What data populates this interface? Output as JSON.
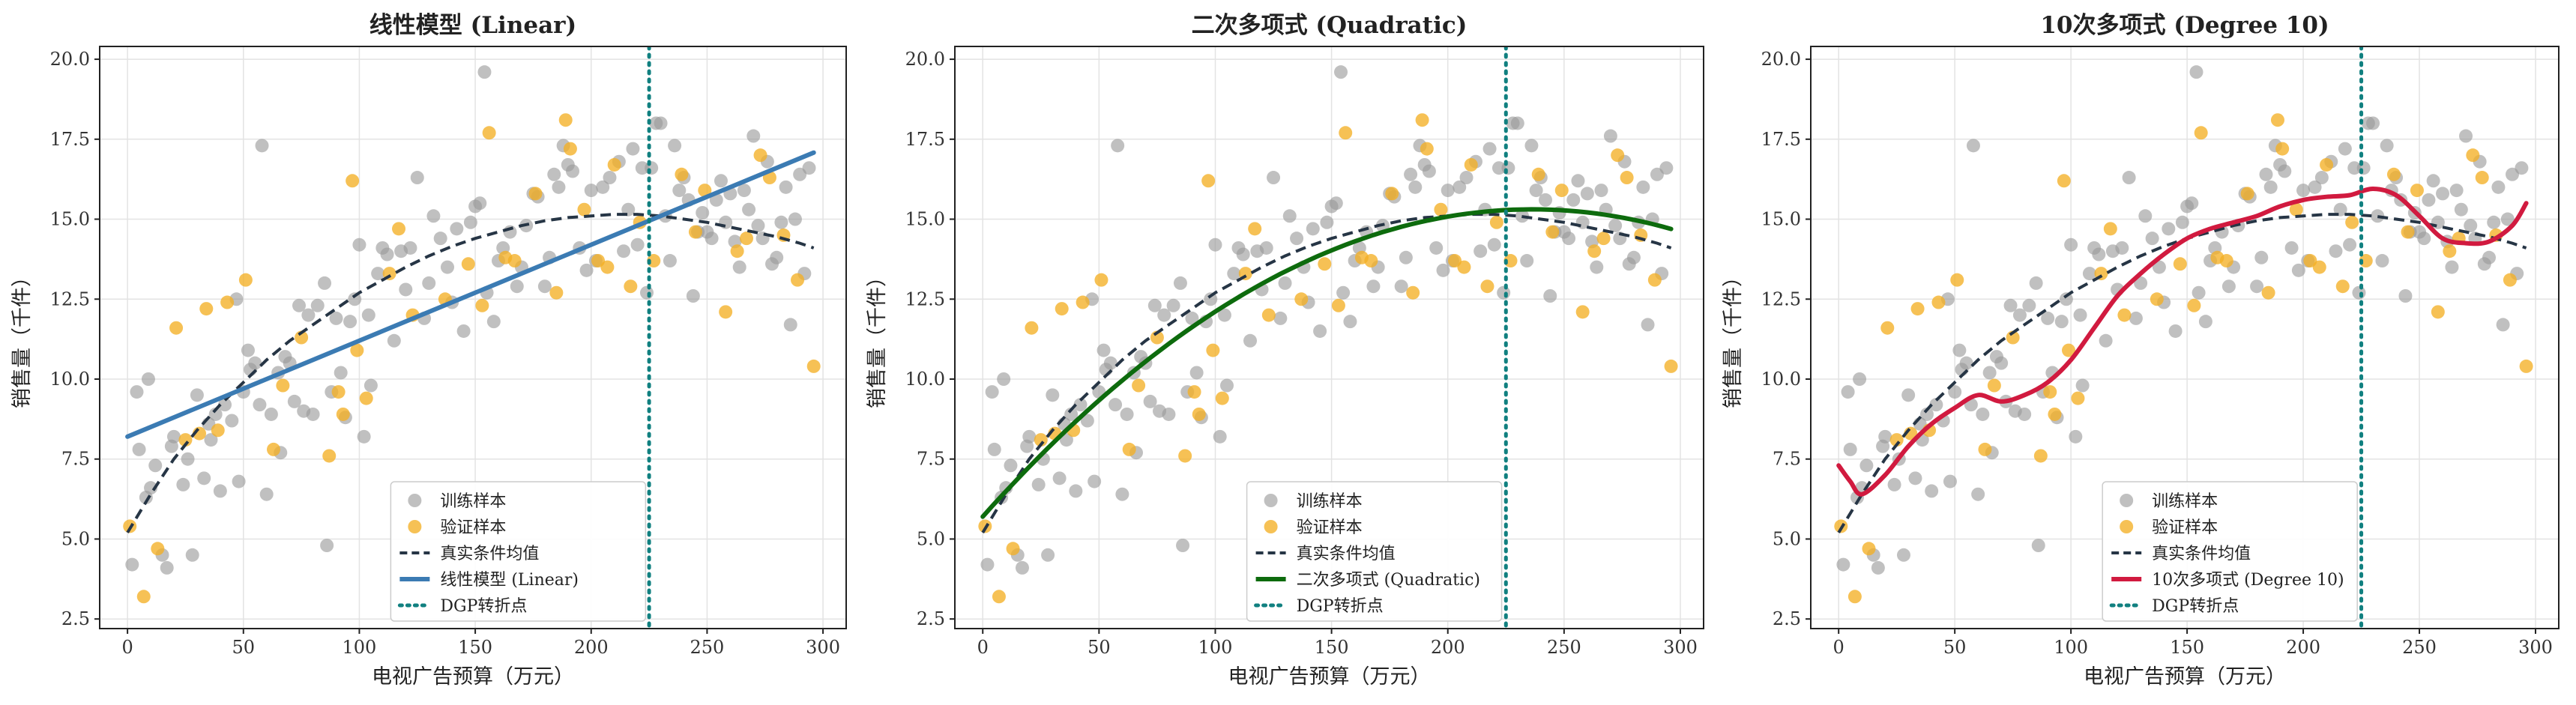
{
  "chart_data": [
    {
      "type": "scatter",
      "title": "线性模型 (Linear)",
      "xlabel": "电视广告预算（万元）",
      "ylabel": "销售量（千件）",
      "xlim": [
        -12,
        310
      ],
      "ylim": [
        2.2,
        20.4
      ],
      "xticks": [
        0,
        50,
        100,
        150,
        200,
        250,
        300
      ],
      "yticks": [
        2.5,
        5.0,
        7.5,
        10.0,
        12.5,
        15.0,
        17.5,
        20.0
      ],
      "grid": true,
      "legend_position": "lower-center",
      "model": {
        "name": "线性模型 (Linear)",
        "kind": "linear",
        "color": "#3b7bb3",
        "coef": [
          8.2,
          0.03
        ]
      },
      "legend": [
        "训练样本",
        "验证样本",
        "真实条件均值",
        "线性模型 (Linear)",
        "DGP转折点"
      ]
    },
    {
      "type": "scatter",
      "title": "二次多项式 (Quadratic)",
      "xlabel": "电视广告预算（万元）",
      "ylabel": "销售量（千件）",
      "xlim": [
        -12,
        310
      ],
      "ylim": [
        2.2,
        20.4
      ],
      "xticks": [
        0,
        50,
        100,
        150,
        200,
        250,
        300
      ],
      "yticks": [
        2.5,
        5.0,
        7.5,
        10.0,
        12.5,
        15.0,
        17.5,
        20.0
      ],
      "grid": true,
      "legend_position": "lower-center",
      "model": {
        "name": "二次多项式 (Quadratic)",
        "kind": "quadratic",
        "color": "#0d6b0d",
        "coef": [
          5.7,
          0.0813,
          -0.000172
        ]
      },
      "legend": [
        "训练样本",
        "验证样本",
        "真实条件均值",
        "二次多项式 (Quadratic)",
        "DGP转折点"
      ]
    },
    {
      "type": "scatter",
      "title": "10次多项式 (Degree 10)",
      "xlabel": "电视广告预算（万元）",
      "ylabel": "销售量（千件）",
      "xlim": [
        -12,
        310
      ],
      "ylim": [
        2.2,
        20.4
      ],
      "xticks": [
        0,
        50,
        100,
        150,
        200,
        250,
        300
      ],
      "yticks": [
        2.5,
        5.0,
        7.5,
        10.0,
        12.5,
        15.0,
        17.5,
        20.0
      ],
      "grid": true,
      "legend_position": "lower-center",
      "model": {
        "name": "10次多项式 (Degree 10)",
        "kind": "points",
        "color": "#d11a3f",
        "x": [
          0,
          5,
          10,
          20,
          30,
          40,
          50,
          60,
          70,
          80,
          90,
          100,
          110,
          120,
          130,
          140,
          150,
          160,
          170,
          180,
          190,
          200,
          210,
          220,
          230,
          240,
          250,
          260,
          270,
          280,
          290,
          296
        ],
        "y": [
          7.3,
          6.8,
          6.4,
          7.0,
          7.9,
          8.6,
          9.1,
          9.5,
          9.3,
          9.5,
          9.9,
          10.6,
          11.6,
          12.6,
          13.3,
          13.9,
          14.4,
          14.7,
          14.9,
          15.1,
          15.4,
          15.6,
          15.7,
          15.75,
          15.95,
          15.75,
          15.1,
          14.4,
          14.25,
          14.3,
          14.8,
          15.5
        ]
      },
      "legend": [
        "训练样本",
        "验证样本",
        "真实条件均值",
        "10次多项式 (Degree 10)",
        "DGP转折点"
      ]
    }
  ],
  "shared": {
    "train_color": "#9a9a9a",
    "val_color": "#f4b025",
    "true_mean_color": "#263545",
    "turning_point_color": "#118080",
    "turning_point_x": 225,
    "true_mean": {
      "x": [
        0,
        10,
        20,
        30,
        40,
        50,
        60,
        70,
        80,
        90,
        100,
        110,
        120,
        130,
        140,
        150,
        160,
        170,
        180,
        190,
        200,
        210,
        220,
        230,
        240,
        250,
        260,
        270,
        280,
        290,
        296
      ],
      "y": [
        5.2,
        6.4,
        7.5,
        8.4,
        9.2,
        9.9,
        10.6,
        11.2,
        11.7,
        12.2,
        12.7,
        13.1,
        13.5,
        13.85,
        14.15,
        14.4,
        14.6,
        14.8,
        14.95,
        15.05,
        15.1,
        15.15,
        15.15,
        15.1,
        15.0,
        14.9,
        14.75,
        14.6,
        14.45,
        14.25,
        14.1
      ]
    },
    "train_points": [
      [
        2,
        4.2
      ],
      [
        4,
        9.6
      ],
      [
        5,
        7.8
      ],
      [
        8,
        6.3
      ],
      [
        9,
        10.0
      ],
      [
        10,
        6.6
      ],
      [
        12,
        7.3
      ],
      [
        15,
        4.5
      ],
      [
        17,
        4.1
      ],
      [
        19,
        7.9
      ],
      [
        20,
        8.2
      ],
      [
        24,
        6.7
      ],
      [
        26,
        7.5
      ],
      [
        28,
        4.5
      ],
      [
        30,
        9.5
      ],
      [
        33,
        6.9
      ],
      [
        35,
        8.6
      ],
      [
        36,
        8.1
      ],
      [
        38,
        8.9
      ],
      [
        40,
        6.5
      ],
      [
        42,
        9.2
      ],
      [
        45,
        8.7
      ],
      [
        47,
        12.5
      ],
      [
        48,
        6.8
      ],
      [
        50,
        9.6
      ],
      [
        52,
        10.9
      ],
      [
        53,
        10.3
      ],
      [
        55,
        10.5
      ],
      [
        57,
        9.2
      ],
      [
        58,
        17.3
      ],
      [
        60,
        6.4
      ],
      [
        62,
        8.9
      ],
      [
        65,
        10.2
      ],
      [
        66,
        7.7
      ],
      [
        68,
        10.7
      ],
      [
        70,
        10.5
      ],
      [
        72,
        9.3
      ],
      [
        74,
        12.3
      ],
      [
        76,
        9.0
      ],
      [
        78,
        12.0
      ],
      [
        80,
        8.9
      ],
      [
        82,
        12.3
      ],
      [
        85,
        13.0
      ],
      [
        86,
        4.8
      ],
      [
        88,
        9.6
      ],
      [
        90,
        11.9
      ],
      [
        92,
        10.2
      ],
      [
        94,
        8.8
      ],
      [
        96,
        11.8
      ],
      [
        98,
        12.5
      ],
      [
        100,
        14.2
      ],
      [
        102,
        8.2
      ],
      [
        104,
        12.0
      ],
      [
        105,
        9.8
      ],
      [
        108,
        13.3
      ],
      [
        110,
        14.1
      ],
      [
        112,
        13.9
      ],
      [
        115,
        11.2
      ],
      [
        118,
        14.0
      ],
      [
        120,
        12.8
      ],
      [
        122,
        14.1
      ],
      [
        125,
        16.3
      ],
      [
        128,
        11.9
      ],
      [
        130,
        13.0
      ],
      [
        132,
        15.1
      ],
      [
        135,
        14.4
      ],
      [
        138,
        13.5
      ],
      [
        140,
        12.4
      ],
      [
        142,
        14.7
      ],
      [
        145,
        11.5
      ],
      [
        148,
        14.9
      ],
      [
        150,
        15.4
      ],
      [
        152,
        15.5
      ],
      [
        154,
        19.6
      ],
      [
        155,
        12.7
      ],
      [
        158,
        11.8
      ],
      [
        160,
        13.7
      ],
      [
        162,
        14.1
      ],
      [
        165,
        14.6
      ],
      [
        168,
        12.9
      ],
      [
        170,
        13.5
      ],
      [
        172,
        14.8
      ],
      [
        175,
        15.8
      ],
      [
        177,
        15.7
      ],
      [
        180,
        12.9
      ],
      [
        182,
        13.8
      ],
      [
        184,
        16.4
      ],
      [
        186,
        16.0
      ],
      [
        188,
        17.3
      ],
      [
        190,
        16.7
      ],
      [
        192,
        16.5
      ],
      [
        195,
        14.1
      ],
      [
        198,
        13.4
      ],
      [
        200,
        15.9
      ],
      [
        202,
        13.7
      ],
      [
        205,
        16.0
      ],
      [
        208,
        16.3
      ],
      [
        212,
        16.8
      ],
      [
        214,
        14.0
      ],
      [
        216,
        15.3
      ],
      [
        218,
        17.2
      ],
      [
        220,
        14.2
      ],
      [
        222,
        16.6
      ],
      [
        224,
        12.7
      ],
      [
        226,
        16.6
      ],
      [
        228,
        18.0
      ],
      [
        230,
        18.0
      ],
      [
        232,
        15.1
      ],
      [
        234,
        13.7
      ],
      [
        236,
        17.3
      ],
      [
        238,
        15.9
      ],
      [
        240,
        16.3
      ],
      [
        242,
        15.6
      ],
      [
        244,
        12.6
      ],
      [
        246,
        14.6
      ],
      [
        248,
        15.2
      ],
      [
        250,
        14.6
      ],
      [
        252,
        14.4
      ],
      [
        254,
        15.6
      ],
      [
        256,
        16.2
      ],
      [
        258,
        14.9
      ],
      [
        260,
        15.8
      ],
      [
        262,
        14.3
      ],
      [
        264,
        13.5
      ],
      [
        266,
        15.9
      ],
      [
        268,
        15.3
      ],
      [
        270,
        17.6
      ],
      [
        272,
        14.8
      ],
      [
        274,
        14.4
      ],
      [
        276,
        16.8
      ],
      [
        278,
        13.6
      ],
      [
        280,
        13.8
      ],
      [
        282,
        14.9
      ],
      [
        284,
        16.0
      ],
      [
        286,
        11.7
      ],
      [
        288,
        15.0
      ],
      [
        290,
        16.4
      ],
      [
        292,
        13.3
      ],
      [
        294,
        16.6
      ]
    ],
    "val_points": [
      [
        1,
        5.4
      ],
      [
        7,
        3.2
      ],
      [
        13,
        4.7
      ],
      [
        21,
        11.6
      ],
      [
        25,
        8.1
      ],
      [
        31,
        8.3
      ],
      [
        34,
        12.2
      ],
      [
        39,
        8.4
      ],
      [
        43,
        12.4
      ],
      [
        51,
        13.1
      ],
      [
        63,
        7.8
      ],
      [
        67,
        9.8
      ],
      [
        75,
        11.3
      ],
      [
        87,
        7.6
      ],
      [
        91,
        9.6
      ],
      [
        93,
        8.9
      ],
      [
        97,
        16.2
      ],
      [
        99,
        10.9
      ],
      [
        103,
        9.4
      ],
      [
        113,
        13.3
      ],
      [
        117,
        14.7
      ],
      [
        123,
        12.0
      ],
      [
        137,
        12.5
      ],
      [
        147,
        13.6
      ],
      [
        153,
        12.3
      ],
      [
        156,
        17.7
      ],
      [
        163,
        13.8
      ],
      [
        167,
        13.7
      ],
      [
        176,
        15.8
      ],
      [
        185,
        12.7
      ],
      [
        189,
        18.1
      ],
      [
        191,
        17.2
      ],
      [
        197,
        15.3
      ],
      [
        203,
        13.7
      ],
      [
        207,
        13.5
      ],
      [
        210,
        16.7
      ],
      [
        217,
        12.9
      ],
      [
        221,
        14.9
      ],
      [
        227,
        13.7
      ],
      [
        239,
        16.4
      ],
      [
        245,
        14.6
      ],
      [
        249,
        15.9
      ],
      [
        258,
        12.1
      ],
      [
        263,
        14.0
      ],
      [
        267,
        14.4
      ],
      [
        273,
        17.0
      ],
      [
        277,
        16.3
      ],
      [
        283,
        14.5
      ],
      [
        289,
        13.1
      ],
      [
        296,
        10.4
      ]
    ]
  }
}
